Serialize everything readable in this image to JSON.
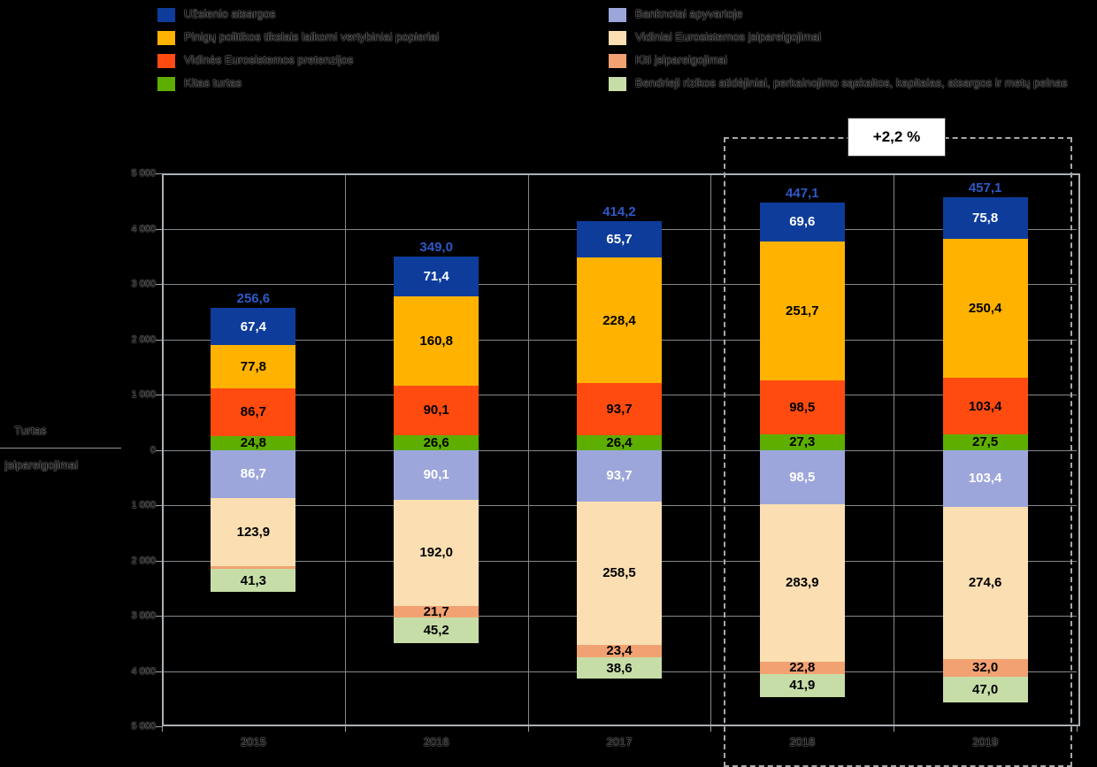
{
  "legend": {
    "left": [
      {
        "label": "Užsienio atsargos",
        "color": "#0D3C9B"
      },
      {
        "label": "Pinigų politikos tikslais laikomi vertybiniai popieriai",
        "color": "#FFB200"
      },
      {
        "label": "Vidinės Eurosistemos pretenzijos",
        "color": "#FF4B0F"
      },
      {
        "label": "Kitas turtas",
        "color": "#5EAE00"
      }
    ],
    "right": [
      {
        "label": "Banknotai apyvartoje",
        "color": "#9CA6DB"
      },
      {
        "label": "Vidiniai Eurosistemos įsipareigojimai",
        "color": "#FBDFB2"
      },
      {
        "label": "Kiti įsipareigojimai",
        "color": "#F2A272"
      },
      {
        "label": "Bendrieji rizikos atidėjiniai, perkainojimo sąskaitos, kapitalas, atsargos ir metų pelnas",
        "color": "#C7DDA7"
      }
    ]
  },
  "axis": {
    "title_top": "Turtas",
    "title_bottom": "Įsipareigojimai"
  },
  "annotation": {
    "text": "+2,2 %",
    "color": "#FF0000"
  },
  "chart_data": {
    "type": "bar",
    "stacked": true,
    "mirrored": true,
    "grid": true,
    "categories": [
      "2015",
      "2016",
      "2017",
      "2018",
      "2019"
    ],
    "totals": {
      "values": [
        256.6,
        349.0,
        414.2,
        447.1,
        457.1
      ],
      "labels": [
        "256,6",
        "349,0",
        "414,2",
        "447,1",
        "457,1"
      ],
      "label_color": "#2E59C6"
    },
    "assets_series": [
      {
        "name": "Užsienio atsargos",
        "color": "#0D3C9B",
        "text_color": "#FFFFFF",
        "values": [
          67.4,
          71.4,
          65.7,
          69.6,
          75.8
        ],
        "labels": [
          "67,4",
          "71,4",
          "65,7",
          "69,6",
          "75,8"
        ]
      },
      {
        "name": "Pinigų politikos tikslais laikomi vertybiniai popieriai",
        "color": "#FFB200",
        "text_color": "#000000",
        "values": [
          77.8,
          160.8,
          228.4,
          251.7,
          250.4
        ],
        "labels": [
          "77,8",
          "160,8",
          "228,4",
          "251,7",
          "250,4"
        ]
      },
      {
        "name": "Vidinės Eurosistemos pretenzijos",
        "color": "#FF4B0F",
        "text_color": "#000000",
        "values": [
          86.7,
          90.1,
          93.7,
          98.5,
          103.4
        ],
        "labels": [
          "86,7",
          "90,1",
          "93,7",
          "98,5",
          "103,4"
        ]
      },
      {
        "name": "Kitas turtas",
        "color": "#5EAE00",
        "text_color": "#000000",
        "values": [
          24.8,
          26.6,
          26.4,
          27.3,
          27.5
        ],
        "labels": [
          "24,8",
          "26,6",
          "26,4",
          "27,3",
          "27,5"
        ]
      }
    ],
    "liabilities_series": [
      {
        "name": "Banknotai apyvartoje",
        "color": "#9CA6DB",
        "text_color": "#FFFFFF",
        "values": [
          86.7,
          90.1,
          93.7,
          98.5,
          103.4
        ],
        "labels": [
          "86,7",
          "90,1",
          "93,7",
          "98,5",
          "103,4"
        ]
      },
      {
        "name": "Vidiniai Eurosistemos įsipareigojimai",
        "color": "#FBDFB2",
        "text_color": "#000000",
        "values": [
          123.9,
          192.0,
          258.5,
          283.9,
          274.6
        ],
        "labels": [
          "123,9",
          "192,0",
          "258,5",
          "283,9",
          "274,6"
        ]
      },
      {
        "name": "Kiti įsipareigojimai",
        "color": "#F2A272",
        "text_color": "#000000",
        "values": [
          4.9,
          21.7,
          23.4,
          22.8,
          32.0
        ],
        "labels": [
          "",
          "21,7",
          "23,4",
          "22,8",
          "32,0"
        ]
      },
      {
        "name": "Bendrieji rizikos atidėjiniai, perkainojimo sąskaitos, kapitalas, atsargos ir metų pelnas",
        "color": "#C7DDA7",
        "text_color": "#000000",
        "values": [
          41.3,
          45.2,
          38.6,
          41.9,
          47.0
        ],
        "labels": [
          "41,3",
          "45,2",
          "38,6",
          "41,9",
          "47,0"
        ]
      }
    ],
    "y_ticks": [
      "5 000",
      "4 000",
      "3 000",
      "2 000",
      "1 000",
      "0",
      "1 000",
      "2 000",
      "3 000",
      "4 000",
      "5 000"
    ],
    "y_axis_label_top": "Turtas",
    "y_axis_label_bottom": "Įsipareigojimai",
    "highlight": {
      "categories": [
        "2018",
        "2019"
      ],
      "annotation": "+2,2 %"
    }
  }
}
